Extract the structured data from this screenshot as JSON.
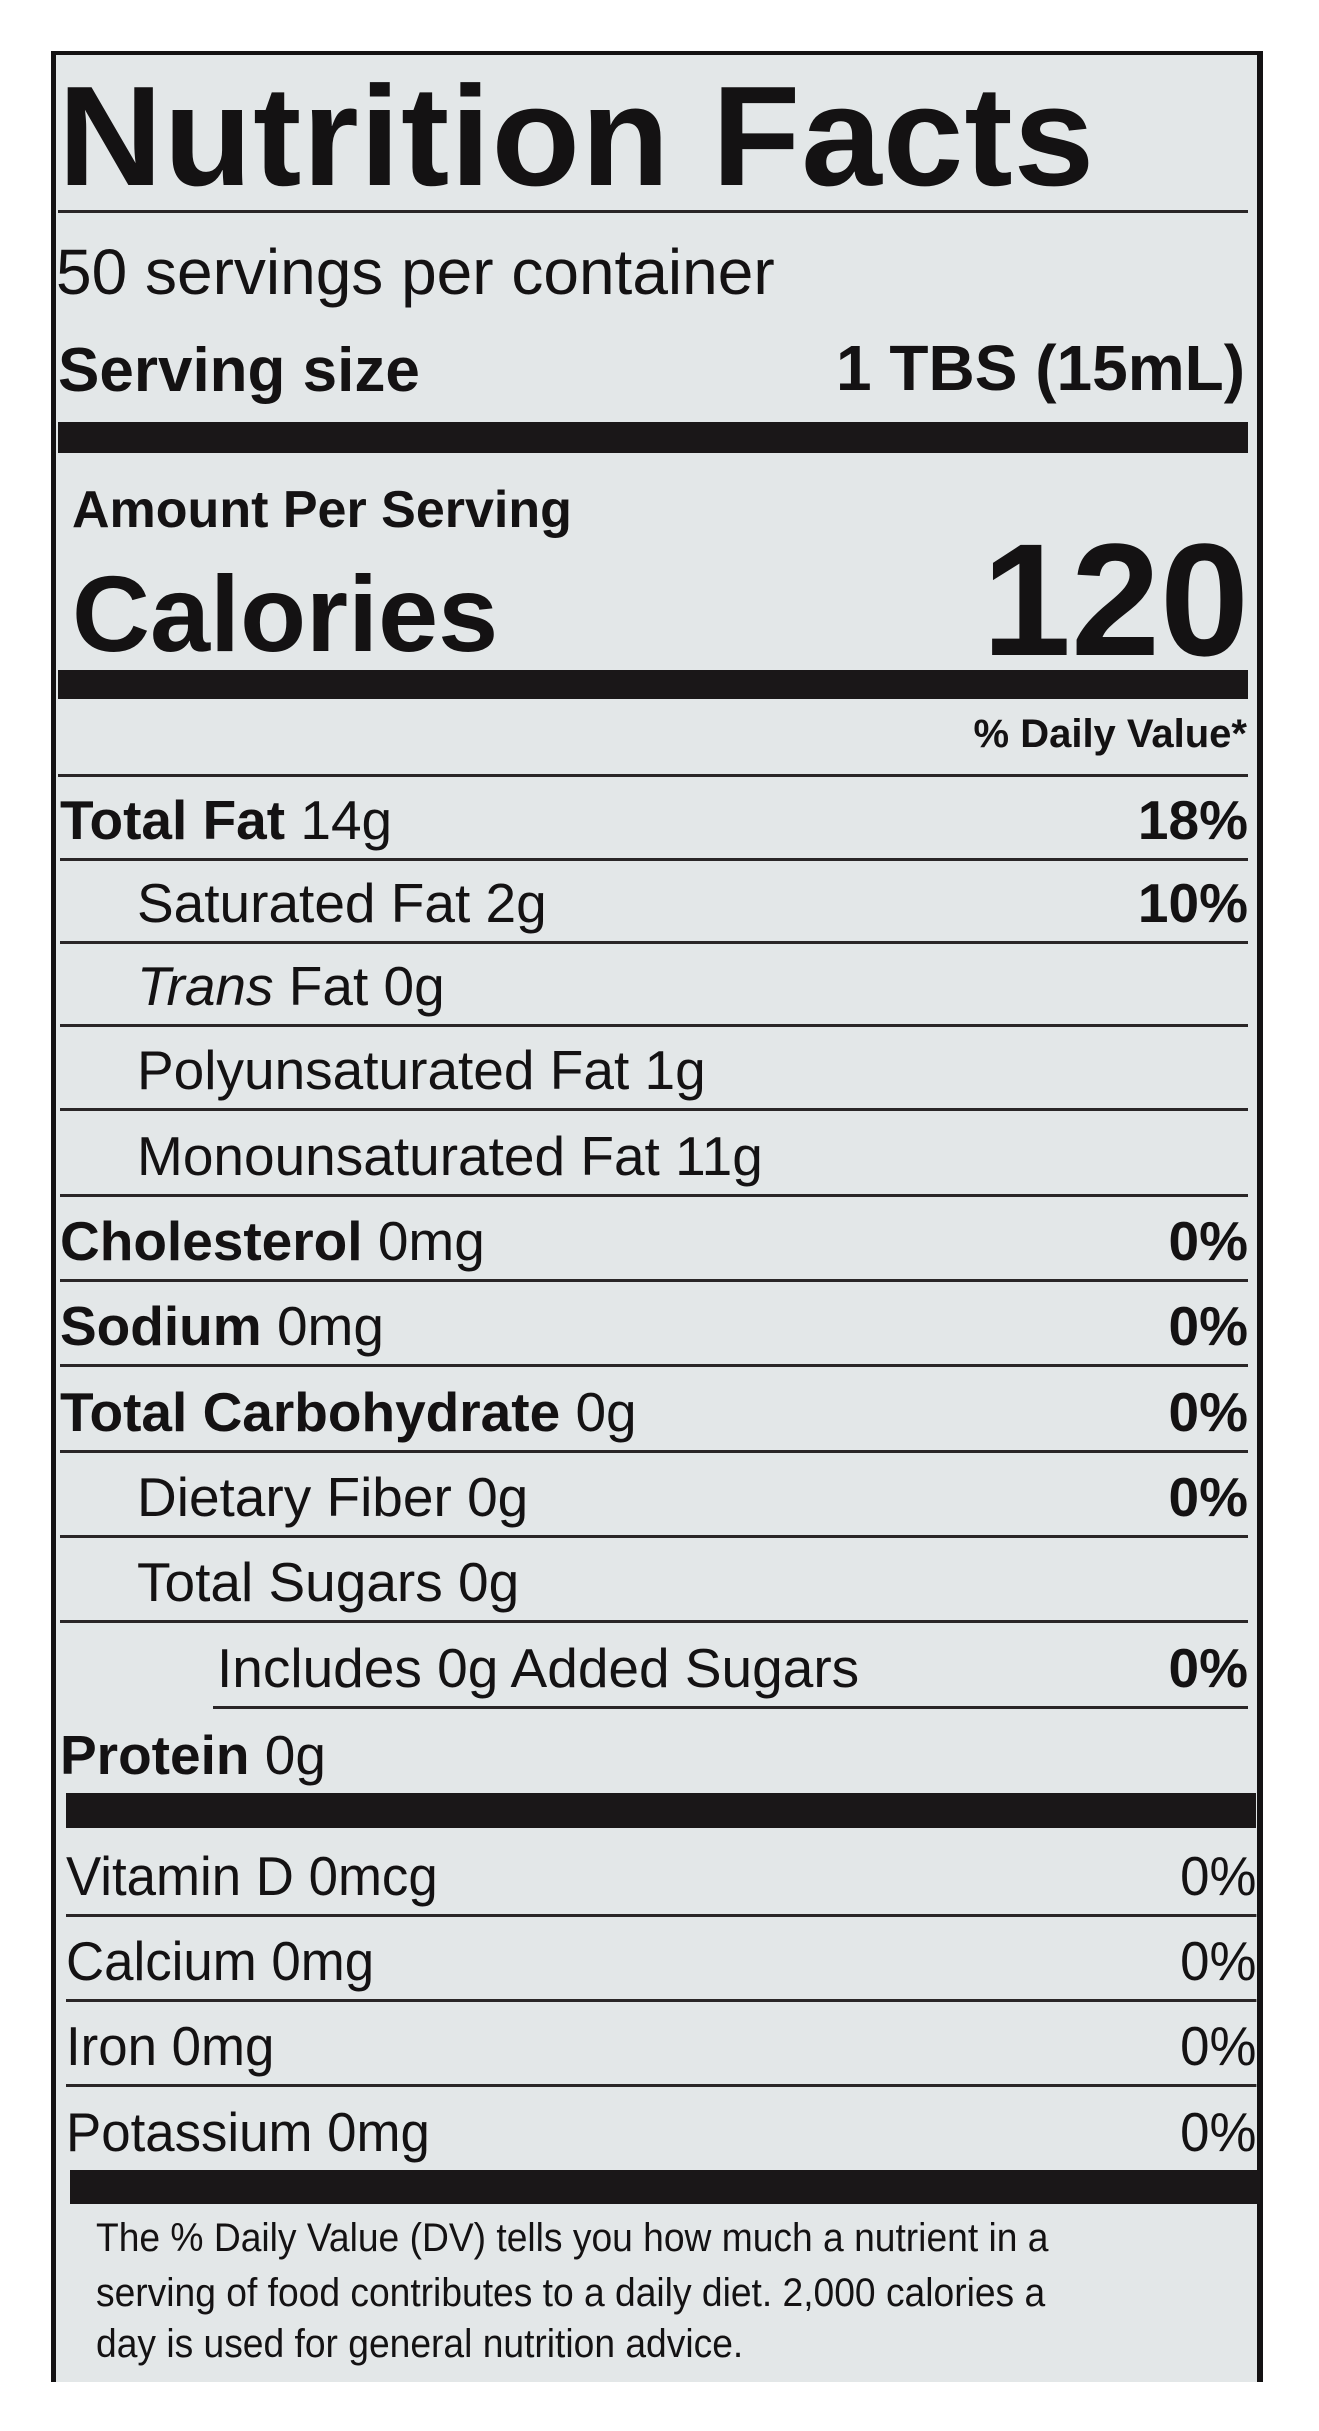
{
  "title": "Nutrition Facts",
  "servings_per_container": "50 servings per container",
  "serving_size": {
    "label": "Serving size",
    "value": "1 TBS (15mL)"
  },
  "amount_per_serving": "Amount Per Serving",
  "calories": {
    "label": "Calories",
    "value": "120"
  },
  "daily_value_header": "% Daily Value*",
  "nutrients": [
    {
      "name": "Total Fat",
      "amount": "14g",
      "dv": "18%",
      "bold": true,
      "indent": 0
    },
    {
      "name": "Saturated Fat",
      "amount": "2g",
      "dv": "10%",
      "bold": false,
      "indent": 1
    },
    {
      "name": "Trans",
      "name_suffix": "Fat",
      "amount": "0g",
      "dv": "",
      "bold": false,
      "indent": 1,
      "italic_prefix": true
    },
    {
      "name": "Polyunsaturated Fat",
      "amount": "1g",
      "dv": "",
      "bold": false,
      "indent": 1
    },
    {
      "name": "Monounsaturated Fat",
      "amount": "11g",
      "dv": "",
      "bold": false,
      "indent": 1
    },
    {
      "name": "Cholesterol",
      "amount": "0mg",
      "dv": "0%",
      "bold": true,
      "indent": 0
    },
    {
      "name": "Sodium",
      "amount": "0mg",
      "dv": "0%",
      "bold": true,
      "indent": 0
    },
    {
      "name": "Total Carbohydrate",
      "amount": "0g",
      "dv": "0%",
      "bold": true,
      "indent": 0
    },
    {
      "name": "Dietary Fiber",
      "amount": "0g",
      "dv": "0%",
      "bold": false,
      "indent": 1
    },
    {
      "name": "Total Sugars",
      "amount": "0g",
      "dv": "",
      "bold": false,
      "indent": 1
    },
    {
      "name": "Includes 0g Added Sugars",
      "amount": "",
      "dv": "0%",
      "bold": false,
      "indent": 2
    },
    {
      "name": "Protein",
      "amount": "0g",
      "dv": "",
      "bold": true,
      "indent": 0
    }
  ],
  "vitamins": [
    {
      "name": "Vitamin D",
      "amount": "0mcg",
      "dv": "0%"
    },
    {
      "name": "Calcium",
      "amount": "0mg",
      "dv": "0%"
    },
    {
      "name": "Iron",
      "amount": "0mg",
      "dv": "0%"
    },
    {
      "name": "Potassium",
      "amount": "0mg",
      "dv": "0%"
    }
  ],
  "footnote": [
    "The % Daily Value (DV) tells you how much a nutrient in a",
    "serving of food contributes to a daily diet. 2,000 calories a",
    "day is used for general nutrition advice."
  ],
  "colors": {
    "ink": "#141213",
    "label_background": "#e3e7e8"
  }
}
